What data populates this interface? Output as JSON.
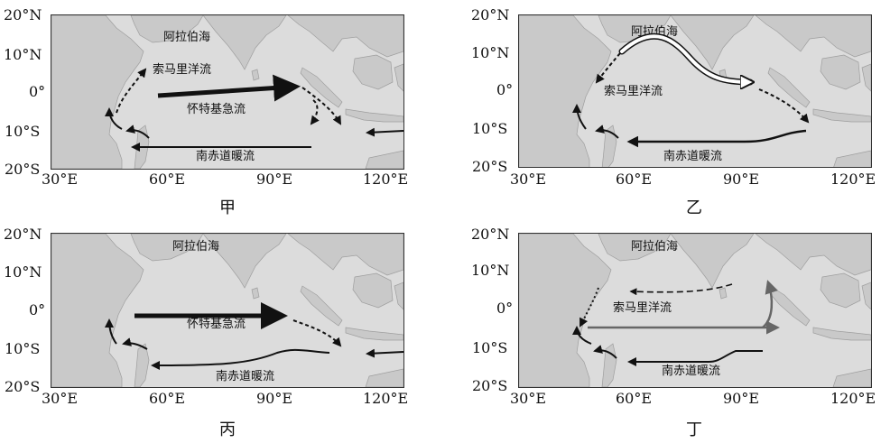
{
  "map_labels": {
    "arabian_sea": "阿拉伯海",
    "somali_current": "索马里洋流",
    "wyrtki_jet": "怀特基急流",
    "south_equatorial_current": "南赤道暖流"
  },
  "axes": {
    "y_ticks": [
      "20°N",
      "10°N",
      "0°",
      "10°S",
      "20°S"
    ],
    "x_ticks": [
      "30°E",
      "60°E",
      "90°E",
      "120°E"
    ]
  },
  "panels": [
    {
      "caption": "甲"
    },
    {
      "caption": "乙"
    },
    {
      "caption": "丙"
    },
    {
      "caption": "丁"
    }
  ],
  "colors": {
    "ocean": "#dcdcdc",
    "land": "#c9c9c9",
    "current": "#111111",
    "current_grey": "#666666"
  }
}
